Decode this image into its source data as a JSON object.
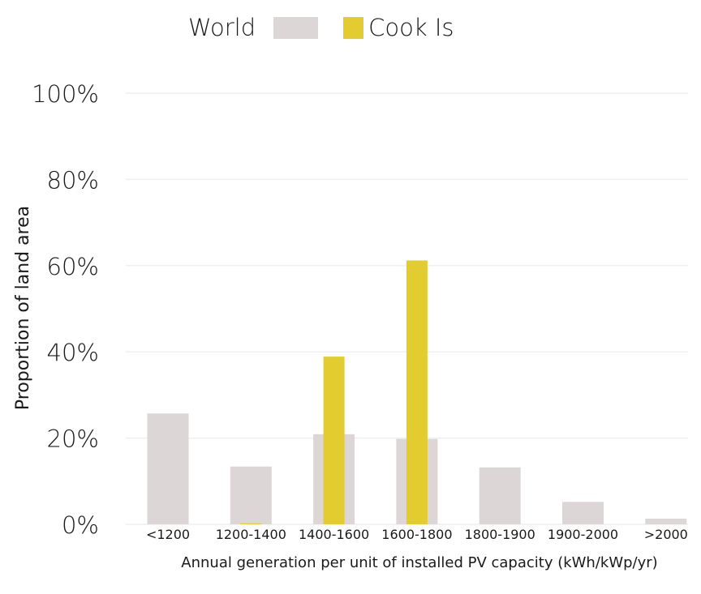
{
  "chart_data": {
    "type": "bar",
    "categories": [
      "<1200",
      "1200-1400",
      "1400-1600",
      "1600-1800",
      "1800-1900",
      "1900-2000",
      ">2000"
    ],
    "series": [
      {
        "name": "World",
        "values": [
          25.7,
          13.4,
          20.9,
          19.8,
          13.2,
          5.2,
          1.3
        ],
        "color": "#dcd6d6"
      },
      {
        "name": "Cook Is",
        "values": [
          0,
          0.2,
          38.9,
          61.2,
          0,
          0,
          0
        ],
        "color": "#e3cc30"
      }
    ],
    "title": "",
    "xlabel": "Annual generation per unit of installed PV capacity (kWh/kWp/yr)",
    "ylabel": "Proportion of land area",
    "ylim": [
      0,
      100
    ],
    "yticks": [
      "0%",
      "20%",
      "40%",
      "60%",
      "80%",
      "100%"
    ],
    "ytick_values": [
      0,
      20,
      40,
      60,
      80,
      100
    ],
    "grid": true,
    "gridline_color": "#efefef",
    "legend_position": "top"
  }
}
